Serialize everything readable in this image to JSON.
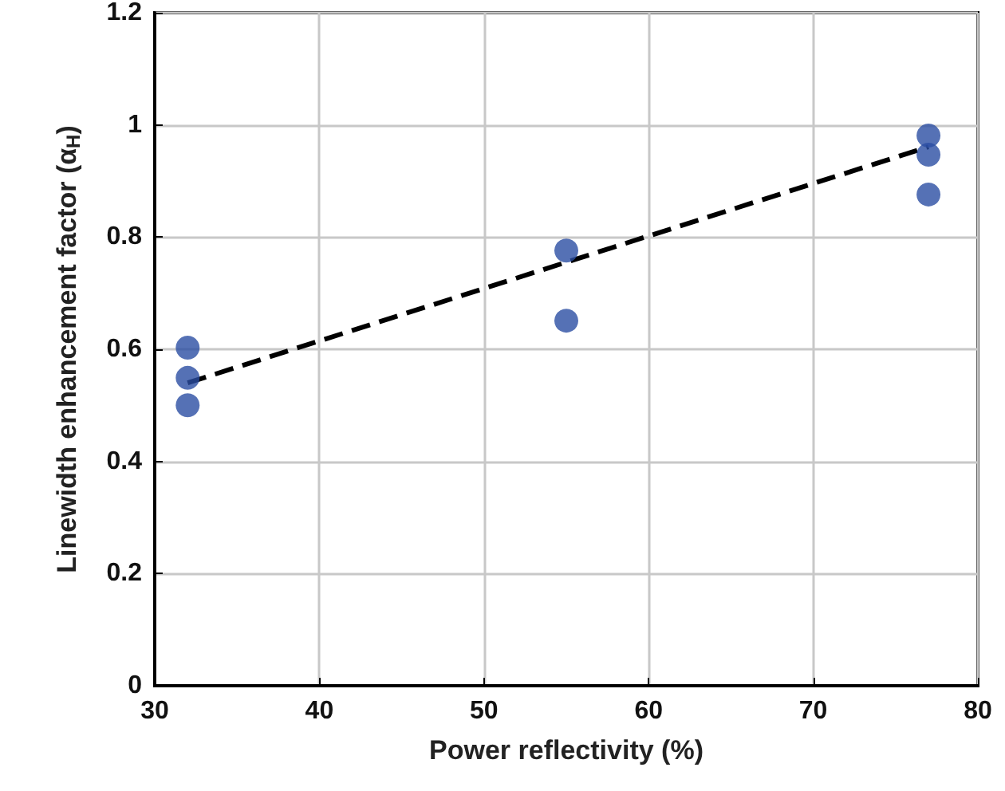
{
  "chart_data": {
    "type": "scatter",
    "xlabel": "Power reflectivity (%)",
    "ylabel": "Linewidth enhancement factor (α$_{H}$)",
    "xlim": [
      30,
      80
    ],
    "xticks": [
      30,
      40,
      50,
      60,
      70,
      80
    ],
    "ylim": [
      0,
      1.2
    ],
    "yticks": [
      0,
      0.2,
      0.4,
      0.6,
      0.8,
      1,
      1.2
    ],
    "grid": true,
    "series": [
      {
        "color": "#2b4ea3",
        "marker": "circle",
        "x": [
          32,
          32,
          32,
          55,
          55,
          77,
          77,
          77
        ],
        "values": [
          0.603,
          0.549,
          0.5,
          0.776,
          0.651,
          0.981,
          0.947,
          0.876
        ]
      },
      {
        "type": "line",
        "color": "#000000",
        "marker": "none",
        "line_style": "dashed",
        "x": [
          32,
          77
        ],
        "values": [
          0.54,
          0.961
        ]
      }
    ]
  }
}
